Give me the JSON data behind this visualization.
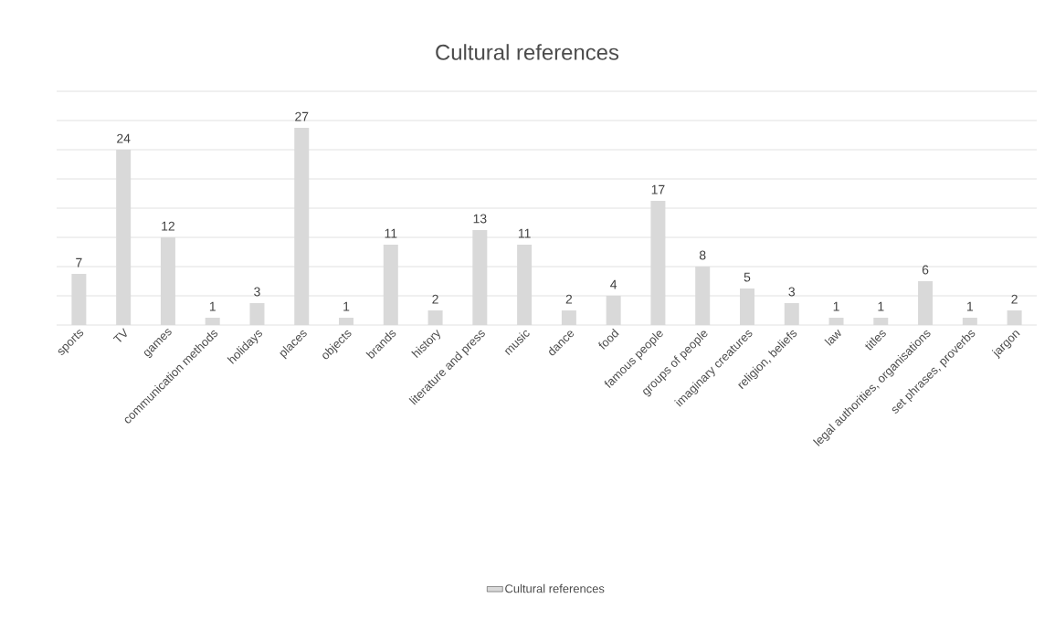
{
  "chart_data": {
    "type": "bar",
    "title": "Cultural references",
    "categories": [
      "sports",
      "TV",
      "games",
      "communication methods",
      "holidays",
      "places",
      "objects",
      "brands",
      "history",
      "literature and press",
      "music",
      "dance",
      "food",
      "famous people",
      "groups of people",
      "imaginary creatures",
      "religion, beliefs",
      "law",
      "titles",
      "legal authorities, organisations",
      "set phrases, proverbs",
      "jargon"
    ],
    "series": [
      {
        "name": "Cultural references",
        "color": "#d9d9d9",
        "values": [
          7,
          24,
          12,
          1,
          3,
          27,
          1,
          11,
          2,
          13,
          11,
          2,
          4,
          17,
          8,
          5,
          3,
          1,
          1,
          6,
          1,
          2
        ]
      }
    ],
    "ylim": [
      0,
      32
    ],
    "yticks": [
      {
        "value": 0,
        "label": null
      },
      {
        "value": 4,
        "label": null
      },
      {
        "value": 8,
        "label": null
      },
      {
        "value": 12,
        "label": null
      },
      {
        "value": 16,
        "label": null
      },
      {
        "value": 20,
        "label": null
      },
      {
        "value": 24,
        "label": null
      },
      {
        "value": 28,
        "label": null
      },
      {
        "value": 32,
        "label": null
      }
    ],
    "grid": "y",
    "tick_labels": "x",
    "data_labels": true,
    "legend": "bottom"
  }
}
